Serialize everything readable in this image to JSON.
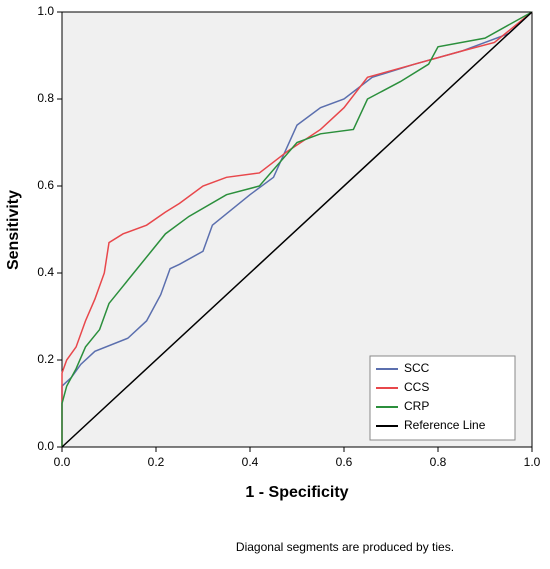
{
  "chart_data": {
    "type": "line",
    "xlabel": "1 - Specificity",
    "ylabel": "Sensitivity",
    "footnote": "Diagonal segments are produced by ties.",
    "xlim": [
      0,
      1
    ],
    "ylim": [
      0,
      1
    ],
    "xticks": [
      {
        "value": 0,
        "label": "0.0"
      },
      0.2,
      0.4,
      0.6,
      0.8,
      {
        "value": 1,
        "label": "1.0"
      }
    ],
    "yticks": [
      {
        "value": 0,
        "label": "0.0"
      },
      0.2,
      0.4,
      0.6,
      0.8,
      {
        "value": 1,
        "label": "1.0"
      }
    ],
    "legend": "lower right",
    "series": [
      {
        "name": "SCC",
        "color": "#5b6fae",
        "x": [
          0,
          0,
          0.02,
          0.04,
          0.07,
          0.14,
          0.18,
          0.21,
          0.23,
          0.25,
          0.3,
          0.32,
          0.4,
          0.45,
          0.5,
          0.55,
          0.6,
          0.66,
          0.75,
          0.85,
          0.95,
          1
        ],
        "values": [
          0,
          0.14,
          0.16,
          0.19,
          0.22,
          0.25,
          0.29,
          0.35,
          0.41,
          0.42,
          0.45,
          0.51,
          0.58,
          0.62,
          0.74,
          0.78,
          0.8,
          0.85,
          0.88,
          0.91,
          0.95,
          1
        ]
      },
      {
        "name": "CCS",
        "color": "#e8474b",
        "x": [
          0,
          0,
          0.01,
          0.03,
          0.05,
          0.07,
          0.09,
          0.1,
          0.13,
          0.18,
          0.22,
          0.25,
          0.3,
          0.35,
          0.42,
          0.48,
          0.55,
          0.6,
          0.65,
          0.75,
          0.85,
          0.92,
          1
        ],
        "values": [
          0,
          0.17,
          0.2,
          0.23,
          0.29,
          0.34,
          0.4,
          0.47,
          0.49,
          0.51,
          0.54,
          0.56,
          0.6,
          0.62,
          0.63,
          0.68,
          0.73,
          0.78,
          0.85,
          0.88,
          0.91,
          0.93,
          1
        ]
      },
      {
        "name": "CRP",
        "color": "#2b8f3c",
        "x": [
          0,
          0,
          0.01,
          0.03,
          0.05,
          0.08,
          0.1,
          0.13,
          0.16,
          0.19,
          0.22,
          0.27,
          0.35,
          0.42,
          0.5,
          0.55,
          0.62,
          0.65,
          0.72,
          0.78,
          0.8,
          0.9,
          1
        ],
        "values": [
          0,
          0.1,
          0.14,
          0.18,
          0.23,
          0.27,
          0.33,
          0.37,
          0.41,
          0.45,
          0.49,
          0.53,
          0.58,
          0.6,
          0.7,
          0.72,
          0.73,
          0.8,
          0.84,
          0.88,
          0.92,
          0.94,
          1
        ]
      },
      {
        "name": "Reference Line",
        "color": "#000000",
        "x": [
          0,
          1
        ],
        "values": [
          0,
          1
        ]
      }
    ]
  }
}
